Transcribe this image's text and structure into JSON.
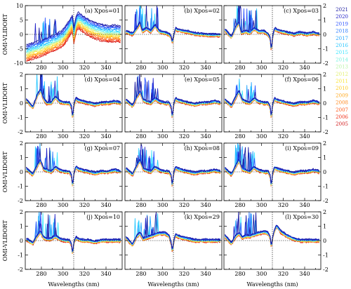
{
  "chart_data": {
    "type": "line",
    "ylabel": "OMI-VLIDORT",
    "xlabel": "Wavelengths (nm)",
    "xlim": [
      265,
      355
    ],
    "x_ticks": [
      280,
      300,
      320,
      340
    ],
    "y_ticks_left": [
      -10,
      -5,
      0,
      5,
      10
    ],
    "y_ticks_right": [
      -2,
      -1,
      0,
      1,
      2
    ],
    "reference_line_x": 310,
    "reference_line_y": 0,
    "legend_years": [
      "2021",
      "2020",
      "2019",
      "2018",
      "2017",
      "2016",
      "2015",
      "2014",
      "2013",
      "2012",
      "2011",
      "2010",
      "2009",
      "2008",
      "2007",
      "2006",
      "2005"
    ],
    "legend_colors": [
      "#1a1aa0",
      "#2323c8",
      "#2f55ff",
      "#2a7bff",
      "#24a6ff",
      "#29c7ff",
      "#3ee6ff",
      "#7cf2e0",
      "#b9f5a8",
      "#e2f070",
      "#fbe53a",
      "#ffcc22",
      "#ffaa22",
      "#ff8a22",
      "#ff5c1c",
      "#f03018",
      "#d0181a"
    ],
    "panels": [
      {
        "id": "a",
        "label": "(a) Xpos=01",
        "ylim": [
          -10,
          10
        ],
        "axis_side": "left"
      },
      {
        "id": "b",
        "label": "(b) Xpos=02",
        "ylim": [
          -10,
          10
        ],
        "axis_side": "none"
      },
      {
        "id": "c",
        "label": "(c) Xpos=03",
        "ylim": [
          -2,
          2
        ],
        "axis_side": "right"
      },
      {
        "id": "d",
        "label": "(d) Xpos=04",
        "ylim": [
          -2,
          2
        ],
        "axis_side": "left"
      },
      {
        "id": "e",
        "label": "(e) Xpos=05",
        "ylim": [
          -2,
          2
        ],
        "axis_side": "none"
      },
      {
        "id": "f",
        "label": "(f) Xpos=06",
        "ylim": [
          -2,
          2
        ],
        "axis_side": "right"
      },
      {
        "id": "g",
        "label": "(g) Xpos=07",
        "ylim": [
          -2,
          2
        ],
        "axis_side": "left"
      },
      {
        "id": "h",
        "label": "(h) Xpos=08",
        "ylim": [
          -2,
          2
        ],
        "axis_side": "none"
      },
      {
        "id": "i",
        "label": "(i) Xpos=09",
        "ylim": [
          -2,
          2
        ],
        "axis_side": "right"
      },
      {
        "id": "j",
        "label": "(j) Xpos=10",
        "ylim": [
          -2,
          2
        ],
        "axis_side": "left"
      },
      {
        "id": "k",
        "label": "(k) Xpos=29",
        "ylim": [
          -2,
          2
        ],
        "axis_side": "none"
      },
      {
        "id": "l",
        "label": "(l) Xpos=30",
        "ylim": [
          -2,
          2
        ],
        "axis_side": "right"
      }
    ],
    "curves": {
      "a": [
        [
          266,
          -6.5
        ],
        [
          272,
          -5.5
        ],
        [
          278,
          -5
        ],
        [
          284,
          -4
        ],
        [
          290,
          -3
        ],
        [
          296,
          -2
        ],
        [
          300,
          -1
        ],
        [
          304,
          1
        ],
        [
          307,
          3
        ],
        [
          309,
          4
        ],
        [
          310,
          -0.5
        ],
        [
          312,
          3.5
        ],
        [
          314,
          5
        ],
        [
          318,
          4
        ],
        [
          324,
          2.5
        ],
        [
          330,
          1.5
        ],
        [
          336,
          0.8
        ],
        [
          342,
          0.5
        ],
        [
          348,
          0.5
        ],
        [
          354,
          0.3
        ]
      ],
      "b": [
        [
          266,
          1
        ],
        [
          272,
          0
        ],
        [
          276,
          2
        ],
        [
          279,
          4
        ],
        [
          281,
          1
        ],
        [
          285,
          2
        ],
        [
          289,
          1
        ],
        [
          293,
          3
        ],
        [
          297,
          1
        ],
        [
          302,
          0.5
        ],
        [
          306,
          0
        ],
        [
          308,
          -1
        ],
        [
          309,
          -3
        ],
        [
          310,
          -1
        ],
        [
          312,
          2
        ],
        [
          314,
          1.5
        ],
        [
          318,
          1.2
        ],
        [
          324,
          0.8
        ],
        [
          330,
          0.2
        ],
        [
          336,
          0
        ],
        [
          342,
          -0.2
        ],
        [
          348,
          -0.3
        ],
        [
          354,
          -0.3
        ]
      ],
      "c": [
        [
          266,
          0.3
        ],
        [
          272,
          -0.2
        ],
        [
          276,
          0.5
        ],
        [
          279,
          0.8
        ],
        [
          281,
          0.1
        ],
        [
          285,
          0.2
        ],
        [
          289,
          0.1
        ],
        [
          293,
          0.4
        ],
        [
          297,
          0.2
        ],
        [
          302,
          0.2
        ],
        [
          306,
          0
        ],
        [
          308,
          -0.3
        ],
        [
          309,
          -1.2
        ],
        [
          310,
          -0.3
        ],
        [
          312,
          0.4
        ],
        [
          314,
          0.3
        ],
        [
          318,
          0.2
        ],
        [
          324,
          0.1
        ],
        [
          330,
          0
        ],
        [
          336,
          0.1
        ],
        [
          342,
          0
        ],
        [
          348,
          0.1
        ],
        [
          354,
          0
        ]
      ],
      "d": [
        [
          266,
          0.2
        ],
        [
          272,
          -0.3
        ],
        [
          276,
          0.5
        ],
        [
          279,
          0.9
        ],
        [
          282,
          0.3
        ],
        [
          285,
          0
        ],
        [
          289,
          0
        ],
        [
          293,
          0.4
        ],
        [
          297,
          0.1
        ],
        [
          302,
          0
        ],
        [
          306,
          0
        ],
        [
          308,
          -0.3
        ],
        [
          309,
          -1.1
        ],
        [
          310,
          -0.2
        ],
        [
          312,
          0.3
        ],
        [
          314,
          0.2
        ],
        [
          318,
          0.1
        ],
        [
          324,
          0
        ],
        [
          330,
          -0.1
        ],
        [
          336,
          0
        ],
        [
          342,
          0
        ],
        [
          348,
          0.1
        ],
        [
          354,
          0
        ]
      ],
      "e": [
        [
          266,
          0.2
        ],
        [
          272,
          -0.2
        ],
        [
          276,
          0.4
        ],
        [
          279,
          0.8
        ],
        [
          282,
          0.2
        ],
        [
          285,
          0.1
        ],
        [
          289,
          0
        ],
        [
          293,
          0.3
        ],
        [
          297,
          0.1
        ],
        [
          302,
          0
        ],
        [
          306,
          0
        ],
        [
          308,
          -0.3
        ],
        [
          309,
          -1.1
        ],
        [
          310,
          -0.2
        ],
        [
          312,
          0.3
        ],
        [
          314,
          0.2
        ],
        [
          318,
          0.1
        ],
        [
          324,
          0
        ],
        [
          330,
          -0.1
        ],
        [
          336,
          0
        ],
        [
          342,
          0
        ],
        [
          348,
          0.1
        ],
        [
          354,
          0
        ]
      ],
      "f": [
        [
          266,
          0.2
        ],
        [
          272,
          -0.2
        ],
        [
          276,
          0.4
        ],
        [
          279,
          0.8
        ],
        [
          282,
          0.2
        ],
        [
          285,
          0.1
        ],
        [
          289,
          0
        ],
        [
          293,
          0.3
        ],
        [
          297,
          0.1
        ],
        [
          302,
          0
        ],
        [
          306,
          0
        ],
        [
          308,
          -0.3
        ],
        [
          309,
          -1.1
        ],
        [
          310,
          -0.2
        ],
        [
          312,
          0.3
        ],
        [
          314,
          0.2
        ],
        [
          318,
          0.1
        ],
        [
          324,
          0
        ],
        [
          330,
          -0.1
        ],
        [
          336,
          0
        ],
        [
          342,
          0
        ],
        [
          348,
          0.1
        ],
        [
          354,
          0
        ]
      ],
      "g": [
        [
          266,
          0.2
        ],
        [
          272,
          -0.2
        ],
        [
          276,
          0.4
        ],
        [
          279,
          0.8
        ],
        [
          282,
          0.2
        ],
        [
          285,
          0.1
        ],
        [
          289,
          0
        ],
        [
          293,
          0.3
        ],
        [
          297,
          0.1
        ],
        [
          302,
          0
        ],
        [
          306,
          0
        ],
        [
          308,
          -0.3
        ],
        [
          309,
          -1.1
        ],
        [
          310,
          -0.2
        ],
        [
          312,
          0.3
        ],
        [
          314,
          0.2
        ],
        [
          318,
          0.1
        ],
        [
          324,
          0
        ],
        [
          330,
          -0.1
        ],
        [
          336,
          0
        ],
        [
          342,
          0
        ],
        [
          348,
          0.1
        ],
        [
          354,
          0
        ]
      ],
      "h": [
        [
          266,
          0.2
        ],
        [
          272,
          -0.2
        ],
        [
          276,
          0.4
        ],
        [
          279,
          0.8
        ],
        [
          282,
          0.2
        ],
        [
          285,
          0.1
        ],
        [
          289,
          0
        ],
        [
          293,
          0.3
        ],
        [
          297,
          0.1
        ],
        [
          302,
          0
        ],
        [
          306,
          0
        ],
        [
          308,
          -0.3
        ],
        [
          309,
          -1.1
        ],
        [
          310,
          -0.2
        ],
        [
          312,
          0.3
        ],
        [
          314,
          0.2
        ],
        [
          318,
          0.1
        ],
        [
          324,
          0
        ],
        [
          330,
          -0.1
        ],
        [
          336,
          0
        ],
        [
          342,
          0
        ],
        [
          348,
          0.1
        ],
        [
          354,
          0
        ]
      ],
      "i": [
        [
          266,
          0.2
        ],
        [
          272,
          -0.2
        ],
        [
          276,
          0.4
        ],
        [
          279,
          0.8
        ],
        [
          282,
          0.2
        ],
        [
          285,
          0.1
        ],
        [
          289,
          0
        ],
        [
          293,
          0.3
        ],
        [
          297,
          0.1
        ],
        [
          302,
          0
        ],
        [
          306,
          0
        ],
        [
          308,
          -0.3
        ],
        [
          309,
          -1.1
        ],
        [
          310,
          -0.2
        ],
        [
          312,
          0.3
        ],
        [
          314,
          0.2
        ],
        [
          318,
          0.1
        ],
        [
          324,
          0
        ],
        [
          330,
          -0.1
        ],
        [
          336,
          0
        ],
        [
          342,
          0
        ],
        [
          348,
          0.1
        ],
        [
          354,
          0
        ]
      ],
      "j": [
        [
          266,
          0.1
        ],
        [
          272,
          -0.2
        ],
        [
          276,
          0.3
        ],
        [
          279,
          0.6
        ],
        [
          282,
          0.2
        ],
        [
          285,
          0.1
        ],
        [
          289,
          0.1
        ],
        [
          293,
          0.3
        ],
        [
          297,
          0.1
        ],
        [
          302,
          0
        ],
        [
          306,
          0
        ],
        [
          308,
          -0.3
        ],
        [
          309,
          -1
        ],
        [
          310,
          -0.2
        ],
        [
          312,
          0.2
        ],
        [
          314,
          0.1
        ],
        [
          318,
          0
        ],
        [
          324,
          0
        ],
        [
          330,
          -0.1
        ],
        [
          336,
          0
        ],
        [
          342,
          0
        ],
        [
          348,
          0
        ],
        [
          354,
          0
        ]
      ],
      "k": [
        [
          266,
          0.2
        ],
        [
          272,
          -0.3
        ],
        [
          276,
          0.3
        ],
        [
          279,
          0.5
        ],
        [
          282,
          0.1
        ],
        [
          285,
          0.2
        ],
        [
          289,
          0.3
        ],
        [
          293,
          0.4
        ],
        [
          297,
          0.5
        ],
        [
          302,
          0.5
        ],
        [
          306,
          0.3
        ],
        [
          308,
          -0.2
        ],
        [
          309,
          -0.8
        ],
        [
          310,
          -0.2
        ],
        [
          312,
          0.4
        ],
        [
          314,
          0.3
        ],
        [
          318,
          0.2
        ],
        [
          324,
          0.1
        ],
        [
          330,
          0
        ],
        [
          336,
          0
        ],
        [
          342,
          0
        ],
        [
          348,
          0
        ],
        [
          354,
          0
        ]
      ],
      "l": [
        [
          266,
          0.3
        ],
        [
          272,
          -0.2
        ],
        [
          276,
          0.3
        ],
        [
          279,
          0.5
        ],
        [
          282,
          0.2
        ],
        [
          285,
          0.3
        ],
        [
          289,
          0.3
        ],
        [
          293,
          0.4
        ],
        [
          297,
          0.5
        ],
        [
          302,
          0.6
        ],
        [
          306,
          0.5
        ],
        [
          308,
          0.2
        ],
        [
          309,
          -0.5
        ],
        [
          310,
          0.1
        ],
        [
          312,
          0.7
        ],
        [
          314,
          1
        ],
        [
          318,
          0.6
        ],
        [
          324,
          0.3
        ],
        [
          330,
          0.1
        ],
        [
          336,
          0
        ],
        [
          342,
          0
        ],
        [
          348,
          0
        ],
        [
          354,
          0
        ]
      ]
    }
  }
}
